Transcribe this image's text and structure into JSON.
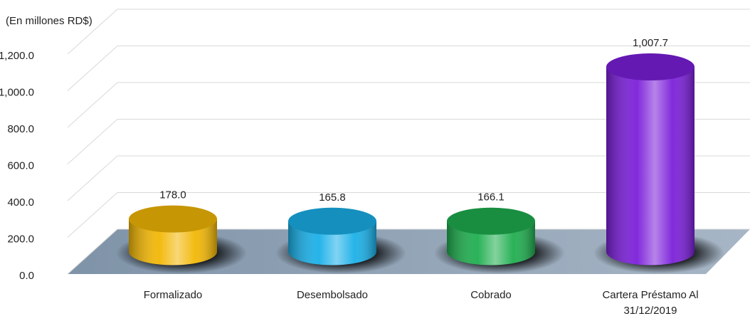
{
  "chart_data": {
    "type": "bar3d",
    "subtitle": "(En millones RD$)",
    "categories": [
      "Formalizado",
      "Desembolsado",
      "Cobrado",
      "Cartera Préstamo Al 31/12/2019"
    ],
    "values": [
      178.0,
      165.8,
      166.1,
      1007.7
    ],
    "value_labels": [
      "178.0",
      "165.8",
      "166.1",
      "1,007.7"
    ],
    "colors": [
      "#f2b705",
      "#1ab0e8",
      "#1fae4f",
      "#7b1fd9"
    ],
    "ylim": [
      0,
      1200
    ],
    "yticks": [
      {
        "value": 0,
        "label": "0.0"
      },
      {
        "value": 200,
        "label": "200.0"
      },
      {
        "value": 400,
        "label": "400.0"
      },
      {
        "value": 600,
        "label": "600.0"
      },
      {
        "value": 800,
        "label": "800.0"
      },
      {
        "value": 1000,
        "label": "1,000.0"
      },
      {
        "value": 1200,
        "label": "1,200.0"
      }
    ],
    "grid": true
  }
}
